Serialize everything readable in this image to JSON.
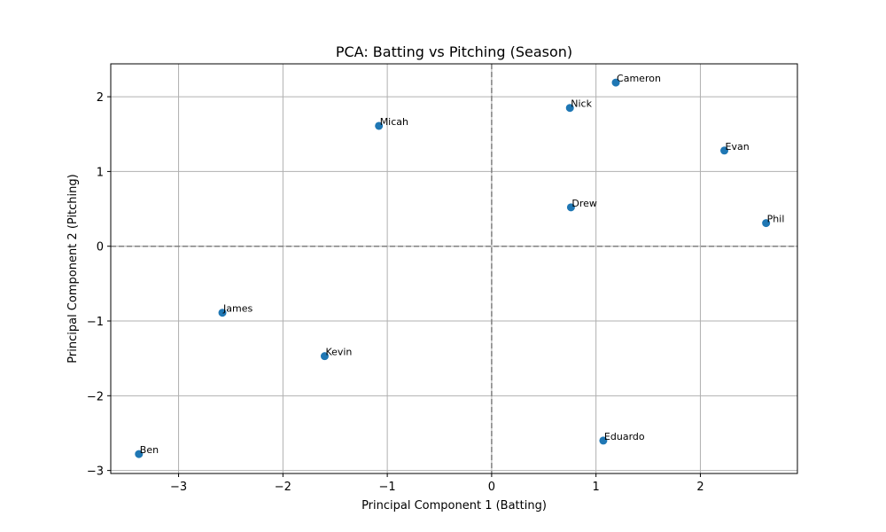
{
  "chart_data": {
    "type": "scatter",
    "title": "PCA: Batting vs Pitching (Season)",
    "xlabel": "Principal Component 1 (Batting)",
    "ylabel": "Principal Component 2 (Pitching)",
    "xlim": [
      -3.65,
      2.93
    ],
    "ylim": [
      -3.04,
      2.44
    ],
    "xticks": [
      -3,
      -2,
      -1,
      0,
      1,
      2
    ],
    "yticks": [
      -3,
      -2,
      -1,
      0,
      1,
      2
    ],
    "xtick_labels": [
      "−3",
      "−2",
      "−1",
      "0",
      "1",
      "2"
    ],
    "ytick_labels": [
      "−3",
      "−2",
      "−1",
      "0",
      "1",
      "2"
    ],
    "grid": true,
    "reference_lines": {
      "x": 0,
      "y": 0,
      "style": "dashed",
      "color": "#808080"
    },
    "point_color": "#1f77b4",
    "points": [
      {
        "label": "Cameron",
        "x": 1.19,
        "y": 2.19
      },
      {
        "label": "Nick",
        "x": 0.75,
        "y": 1.85
      },
      {
        "label": "Micah",
        "x": -1.08,
        "y": 1.61
      },
      {
        "label": "Evan",
        "x": 2.23,
        "y": 1.28
      },
      {
        "label": "Drew",
        "x": 0.76,
        "y": 0.52
      },
      {
        "label": "Phil",
        "x": 2.63,
        "y": 0.31
      },
      {
        "label": "James",
        "x": -2.58,
        "y": -0.89
      },
      {
        "label": "Kevin",
        "x": -1.6,
        "y": -1.47
      },
      {
        "label": "Eduardo",
        "x": 1.07,
        "y": -2.6
      },
      {
        "label": "Ben",
        "x": -3.38,
        "y": -2.78
      }
    ]
  }
}
